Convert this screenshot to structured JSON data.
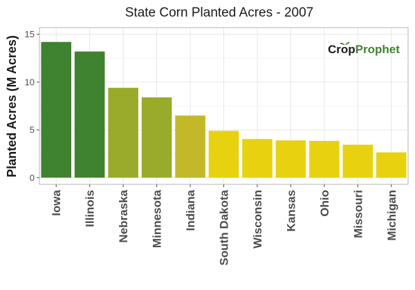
{
  "chart_data": {
    "type": "bar",
    "title": "State Corn Planted Acres - 2007",
    "ylabel": "Planted Acres (M Acres)",
    "xlabel": "",
    "categories": [
      "Iowa",
      "Illinois",
      "Nebraska",
      "Minnesota",
      "Indiana",
      "South Dakota",
      "Wisconsin",
      "Kansas",
      "Ohio",
      "Missouri",
      "Michigan"
    ],
    "values": [
      14.2,
      13.2,
      9.4,
      8.4,
      6.5,
      4.9,
      4.05,
      3.9,
      3.85,
      3.45,
      2.65
    ],
    "ylim": [
      -0.7,
      15.7
    ],
    "yticks": [
      0,
      5,
      10,
      15
    ],
    "grid": true,
    "bar_colors": [
      "#3f8230",
      "#3f8230",
      "#9aaa2a",
      "#9aaa2a",
      "#c2b82a",
      "#e8d20f",
      "#e8d20f",
      "#e8d20f",
      "#e8d20f",
      "#e8d20f",
      "#e8d20f"
    ]
  },
  "logo": {
    "part1": "Crop",
    "part2": "Prophet",
    "color1": "#1a1a1a",
    "color2": "#3f8230"
  }
}
